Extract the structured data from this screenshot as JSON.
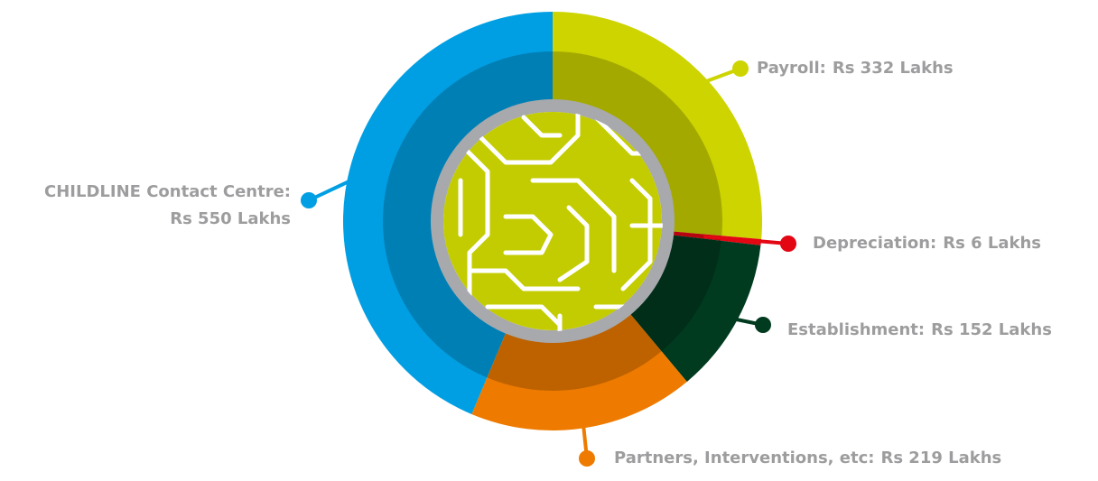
{
  "chart_data": {
    "type": "donut",
    "categories": [
      "Payroll:",
      "Depreciation:",
      "Establishment:",
      "Partners, Interventions, etc:",
      "CHILDLINE Contact Centre:"
    ],
    "values": [
      332,
      6,
      152,
      219,
      550
    ],
    "value_labels": [
      "Rs 332 Lakhs",
      "Rs 6 Lakhs",
      "Rs 152 Lakhs",
      "Rs 219 Lakhs",
      "Rs 550 Lakhs"
    ],
    "colors": [
      "#cdd400",
      "#e30613",
      "#003a1f",
      "#ee7b00",
      "#009fe3"
    ]
  }
}
